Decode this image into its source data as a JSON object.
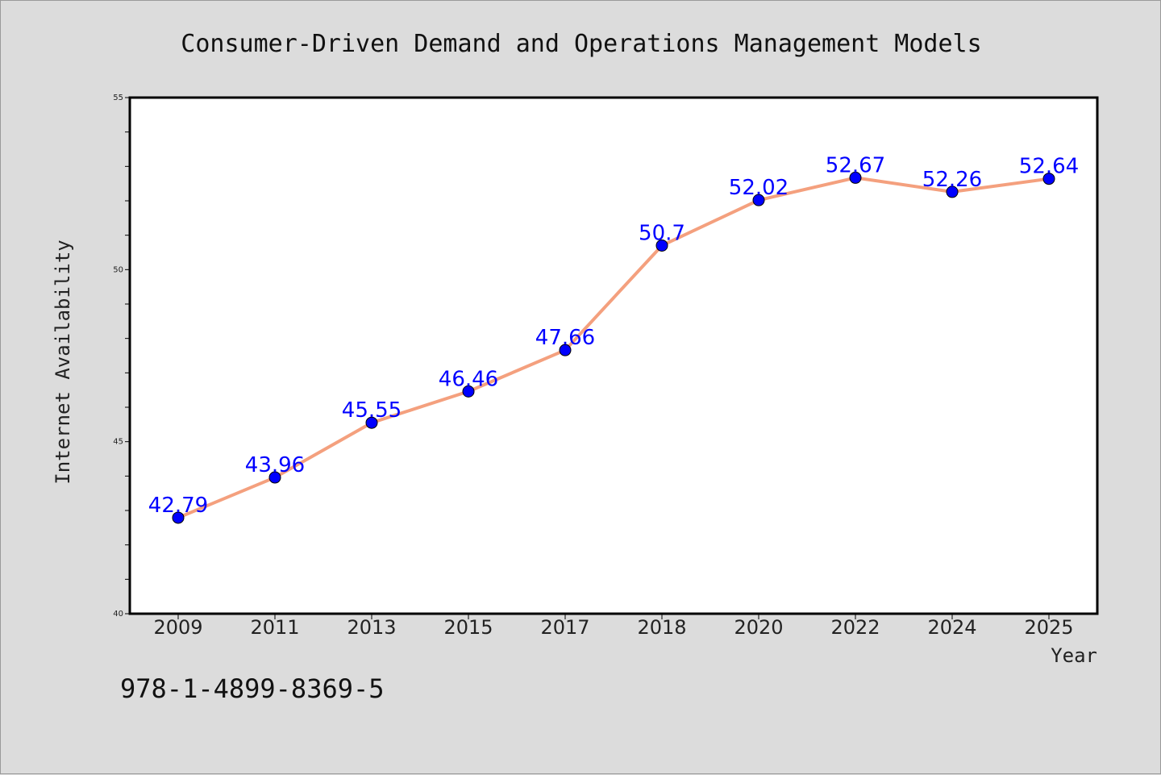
{
  "chart_data": {
    "type": "line",
    "title": "Consumer-Driven Demand and Operations Management Models",
    "xlabel": "Year",
    "ylabel": "Internet Availability",
    "categories": [
      "2009",
      "2011",
      "2013",
      "2015",
      "2017",
      "2018",
      "2020",
      "2022",
      "2024",
      "2025"
    ],
    "series": [
      {
        "values": [
          42.79,
          43.96,
          45.55,
          46.46,
          47.66,
          50.7,
          52.02,
          52.67,
          52.26,
          52.64
        ],
        "labels": [
          "42.79",
          "43.96",
          "45.55",
          "46.46",
          "47.66",
          "50.7",
          "52.02",
          "52.67",
          "52.26",
          "52.64"
        ],
        "line_color": "#f4a07e",
        "marker_color": "#0000ff",
        "label_color": "#0000ff"
      }
    ],
    "ylim": [
      40,
      55
    ],
    "yticks": [
      40,
      45,
      50,
      55
    ],
    "yminor_step": 1,
    "grid": false,
    "legend": "none",
    "plot_background": "#ffffff",
    "figure_background": "#dcdcdc"
  },
  "footnote": "978-1-4899-8369-5"
}
